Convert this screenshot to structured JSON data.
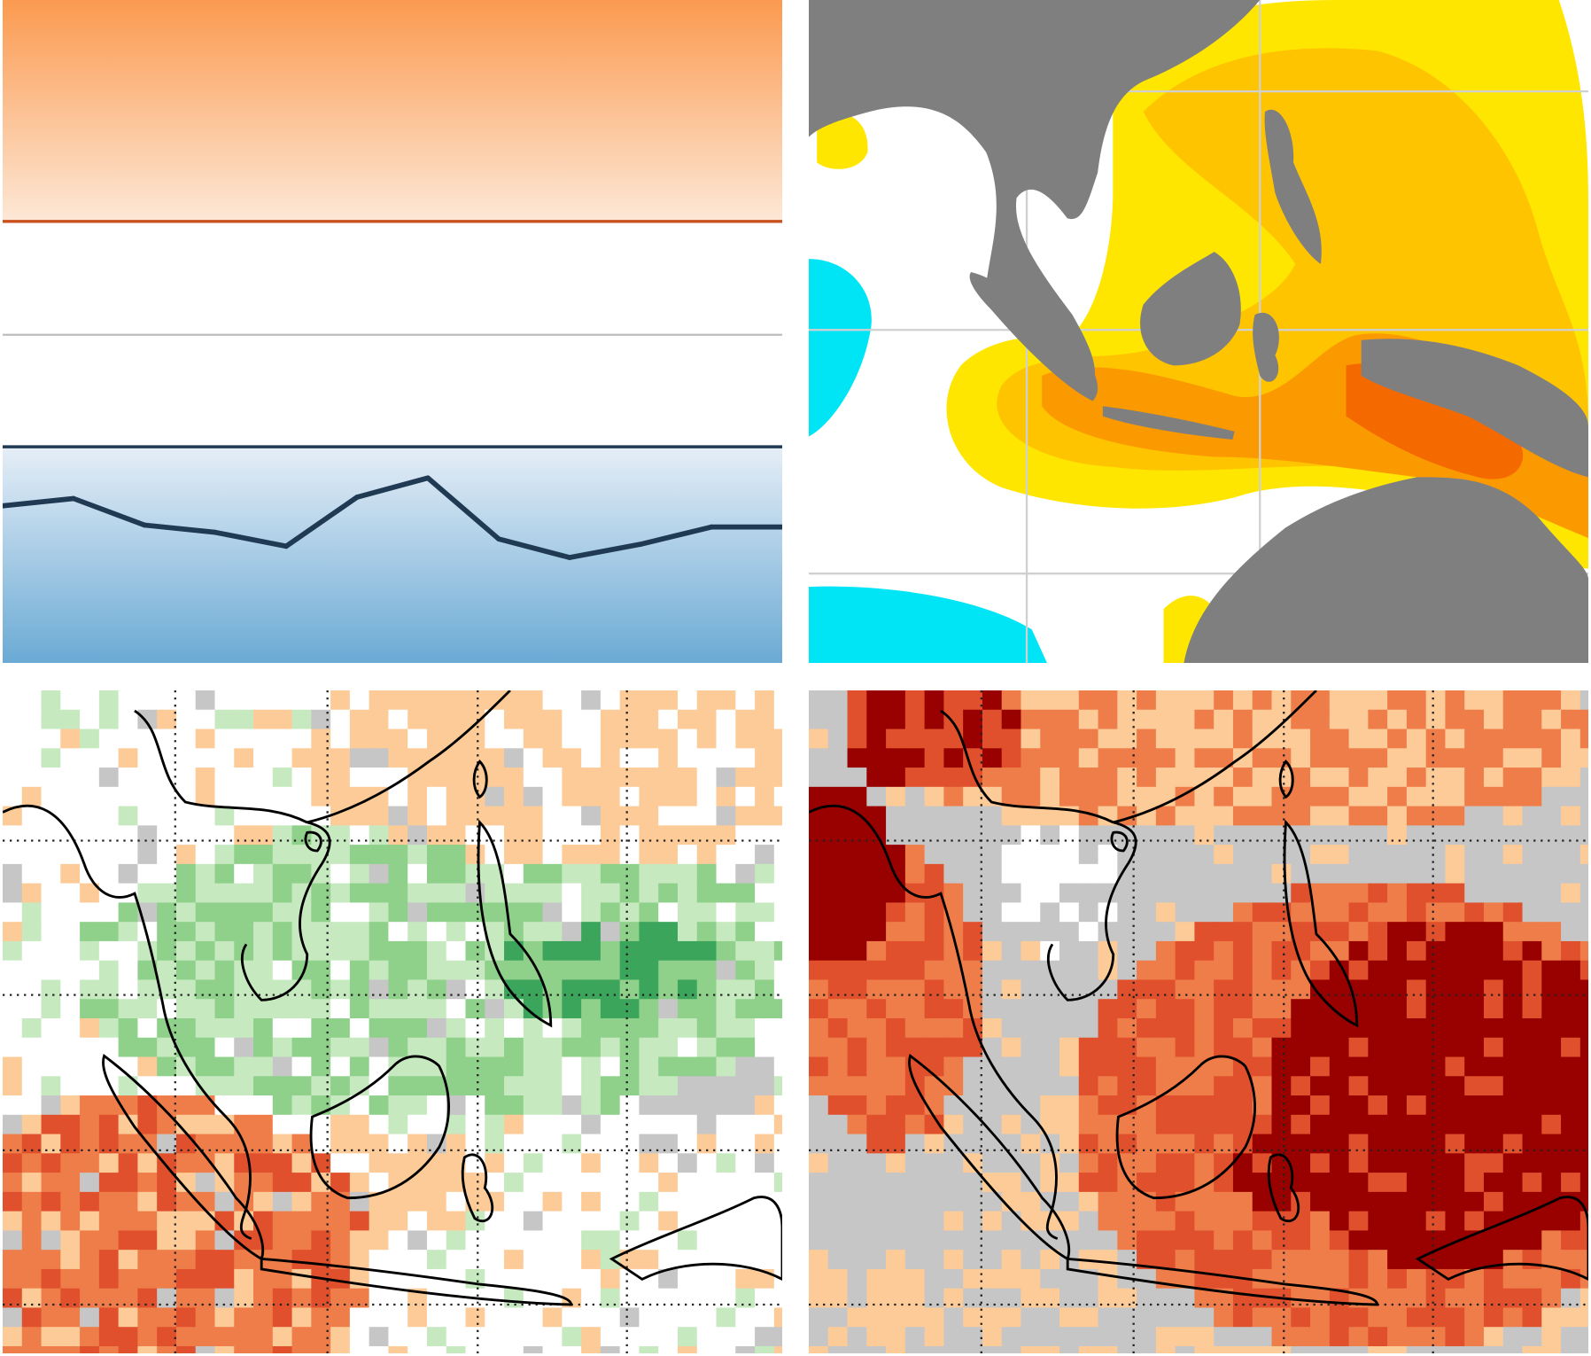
{
  "chart_data": {
    "type": "line",
    "title": "",
    "xlabel": "",
    "ylabel": "",
    "ylim": [
      0,
      1
    ],
    "grid": false,
    "values": [
      0.237,
      0.248,
      0.208,
      0.197,
      0.176,
      0.25,
      0.279,
      0.187,
      0.159,
      0.179,
      0.205,
      0.205
    ],
    "upper_band_threshold": 0.666,
    "middle_reference": 0.495,
    "lower_band_threshold": 0.326
  },
  "colors": {
    "upper_band": "#fb9a50",
    "upper_line": "#c9501c",
    "middle_line": "#bdbdbd",
    "lower_line": "#1f3a52",
    "lower_band": "#6aaad4",
    "land": "#7f7f7f",
    "ocean": "#ffffff",
    "yellow": "#ffe600",
    "light_orange": "#ffc400",
    "orange": "#fb9a00",
    "dark_orange": "#f46a00",
    "cyan": "#00e5f5",
    "green_light": "#c7e9c0",
    "green_mid": "#8fd08a",
    "green_dark": "#3ba55c",
    "peach": "#fdcb98",
    "orange_red": "#ef7d4a",
    "red": "#e0502c",
    "dark_red": "#990000",
    "missing_gray": "#c6c6c6"
  },
  "panels": [
    {
      "id": "line-index-chart"
    },
    {
      "id": "anomaly-map-contour"
    },
    {
      "id": "anomaly-map-gridded-green"
    },
    {
      "id": "anomaly-map-gridded-red"
    }
  ]
}
